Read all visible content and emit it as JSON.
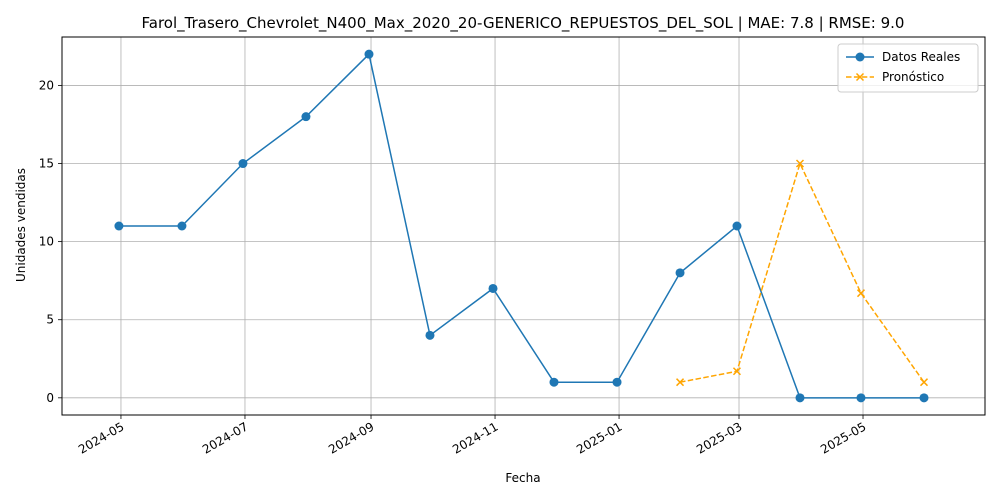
{
  "chart_data": {
    "type": "line",
    "title": "Farol_Trasero_Chevrolet_N400_Max_2020_20-GENERICO_REPUESTOS_DEL_SOL | MAE: 7.8 | RMSE: 9.0",
    "xlabel": "Fecha",
    "ylabel": "Unidades vendidas",
    "x_ticks": [
      "2024-05",
      "2024-07",
      "2024-09",
      "2024-11",
      "2025-01",
      "2025-03",
      "2025-05"
    ],
    "y_ticks": [
      0,
      5,
      10,
      15,
      20
    ],
    "ylim": [
      -1.1,
      23.1
    ],
    "xlim": [
      "2024-04-02",
      "2025-06-30"
    ],
    "grid": true,
    "legend_position": "top-right",
    "series": [
      {
        "name": "Datos Reales",
        "color": "#1f77b4",
        "marker": "circle",
        "linestyle": "solid",
        "x": [
          "2024-04-30",
          "2024-05-31",
          "2024-06-30",
          "2024-07-31",
          "2024-08-31",
          "2024-09-30",
          "2024-10-31",
          "2024-11-30",
          "2024-12-31",
          "2025-01-31",
          "2025-02-28",
          "2025-03-31",
          "2025-04-30",
          "2025-05-31"
        ],
        "values": [
          11,
          11,
          15,
          18,
          22,
          4,
          7,
          1,
          1,
          8,
          11,
          0,
          0,
          0
        ]
      },
      {
        "name": "Pronóstico",
        "color": "#ffa500",
        "marker": "x",
        "linestyle": "dashed",
        "x": [
          "2025-01-31",
          "2025-02-28",
          "2025-03-31",
          "2025-04-30",
          "2025-05-31"
        ],
        "values": [
          1,
          1.7,
          15,
          6.7,
          1
        ]
      }
    ]
  }
}
